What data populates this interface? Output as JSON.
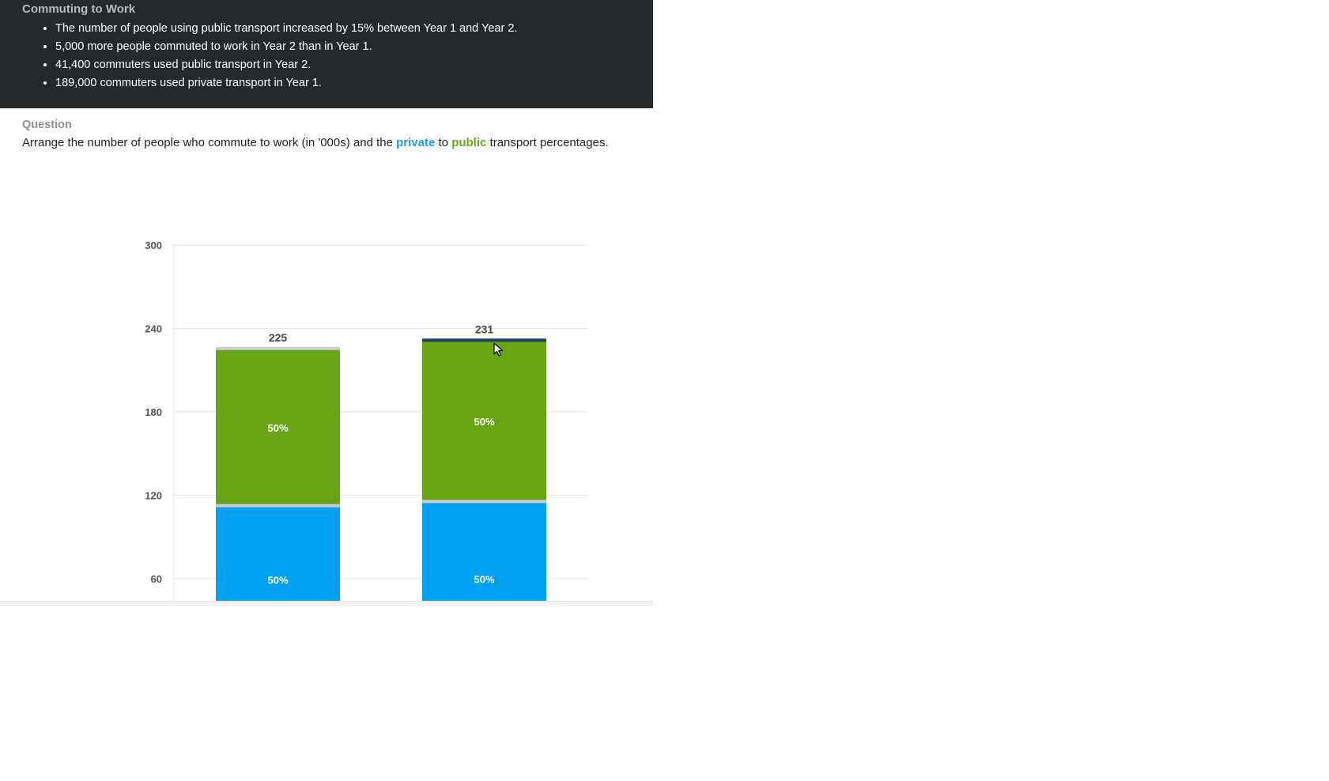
{
  "info": {
    "title": "Commuting to Work",
    "facts": [
      "The number of people using public transport increased by 15% between Year 1 and Year 2.",
      "5,000 more people commuted to work in Year 2 than in Year 1.",
      "41,400 commuters used public transport in Year 2.",
      "189,000 commuters used private transport in Year 1."
    ]
  },
  "question": {
    "label": "Question",
    "text_before": "Arrange the number of people who commute to work (in '000s) and the ",
    "private_word": "private",
    "connector": " to ",
    "public_word": "public",
    "text_after": " transport percentages."
  },
  "colors": {
    "private": "#00a0f0",
    "public": "#68a514",
    "panel_bg": "#25292c",
    "handle": "#1c3f66"
  },
  "chart_data": {
    "type": "bar",
    "stacked": true,
    "y_ticks": [
      60,
      120,
      180,
      240,
      300
    ],
    "y_range_visible": [
      44,
      300
    ],
    "grid": true,
    "bars": [
      {
        "total": 225,
        "total_label": "225",
        "split_value": 112.5,
        "private_pct_label": "50%",
        "public_pct_label": "50%",
        "selected": false
      },
      {
        "total": 231,
        "total_label": "231",
        "split_value": 115.5,
        "private_pct_label": "50%",
        "public_pct_label": "50%",
        "selected": true
      }
    ]
  }
}
